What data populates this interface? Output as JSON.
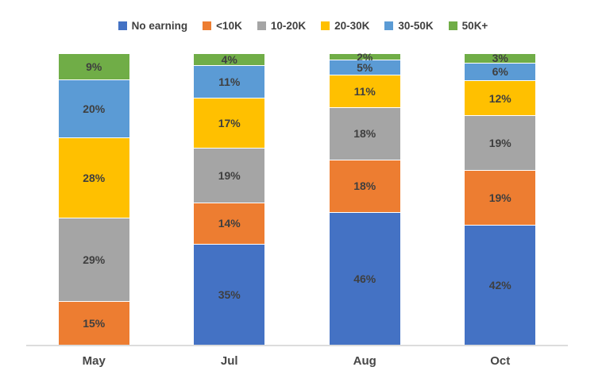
{
  "chart_data": {
    "type": "bar",
    "variant": "stacked-100-percent",
    "title": "",
    "xlabel": "",
    "ylabel": "",
    "ylim": [
      0,
      100
    ],
    "grid": false,
    "legend_position": "top",
    "data_labels": "percent-inside",
    "axis_line_color": "#dcdcdc",
    "label_color": "#3f3f3f",
    "categories": [
      "May",
      "Jul",
      "Aug",
      "Oct"
    ],
    "series": [
      {
        "name": "No earning",
        "color": "#4472C4",
        "values": [
          0,
          35,
          46,
          42
        ]
      },
      {
        "name": "<10K",
        "color": "#ED7D31",
        "values": [
          15,
          14,
          18,
          19
        ]
      },
      {
        "name": "10-20K",
        "color": "#A5A5A5",
        "values": [
          29,
          19,
          18,
          19
        ]
      },
      {
        "name": "20-30K",
        "color": "#FFC000",
        "values": [
          28,
          17,
          11,
          12
        ]
      },
      {
        "name": "30-50K",
        "color": "#5B9BD5",
        "values": [
          20,
          11,
          5,
          6
        ]
      },
      {
        "name": "50K+",
        "color": "#70AD47",
        "values": [
          9,
          4,
          2,
          3
        ]
      }
    ],
    "visible_labels": {
      "May": [
        "15%",
        "29%",
        "28%",
        "20%",
        "9%"
      ],
      "Jul": [
        "35%",
        "14%",
        "19%",
        "17%",
        "11%",
        "4%"
      ],
      "Aug": [
        "46%",
        "18%",
        "18%",
        "11%",
        "5%",
        "2%"
      ],
      "Oct": [
        "42%",
        "19%",
        "19%",
        "12%",
        "6%",
        "3%"
      ]
    }
  }
}
